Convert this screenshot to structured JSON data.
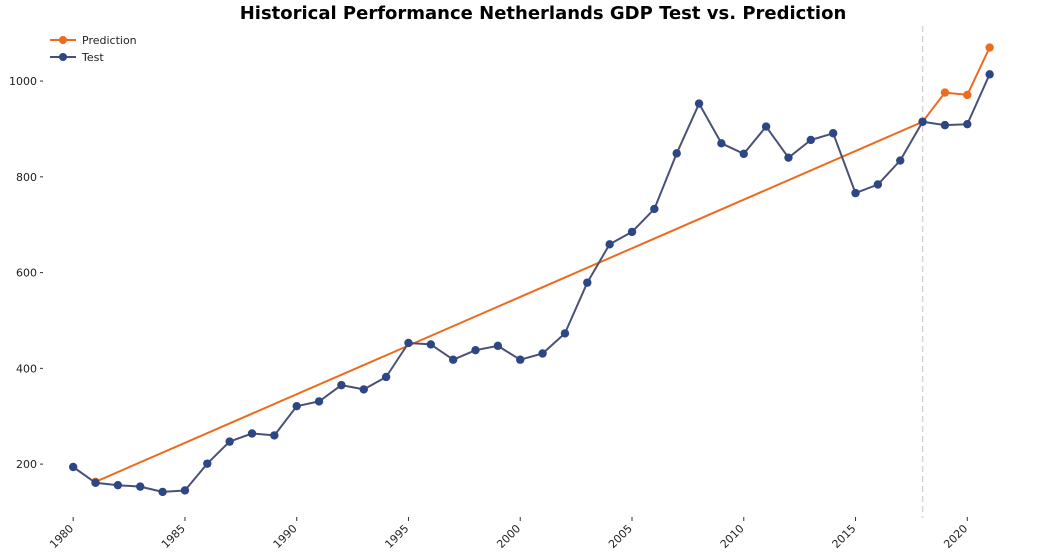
{
  "chart_data": {
    "type": "line",
    "title": "Historical Performance Netherlands GDP Test vs. Prediction",
    "xlabel": "",
    "ylabel": "",
    "xlim": [
      1979.5,
      2022
    ],
    "ylim": [
      100,
      1115
    ],
    "x_ticks": [
      1980,
      1985,
      1990,
      1995,
      2000,
      2005,
      2010,
      2015,
      2020
    ],
    "y_ticks": [
      200,
      400,
      600,
      800,
      1000
    ],
    "grid": false,
    "legend_position": "top-left",
    "vertical_marker": {
      "x": 2018,
      "style": "dashed"
    },
    "series": [
      {
        "name": "Prediction",
        "color": "#ec6b1e",
        "x": [
          1981,
          2018,
          2019,
          2020,
          2021
        ],
        "values": [
          163,
          915,
          976,
          971,
          1070
        ]
      },
      {
        "name": "Test",
        "color": "#2c4784",
        "line_color": "#4a5177",
        "x": [
          1980,
          1981,
          1982,
          1983,
          1984,
          1985,
          1986,
          1987,
          1988,
          1989,
          1990,
          1991,
          1992,
          1993,
          1994,
          1995,
          1996,
          1997,
          1998,
          1999,
          2000,
          2001,
          2002,
          2003,
          2004,
          2005,
          2006,
          2007,
          2008,
          2009,
          2010,
          2011,
          2012,
          2013,
          2014,
          2015,
          2016,
          2017,
          2018,
          2019,
          2020,
          2021
        ],
        "values": [
          194,
          161,
          156,
          153,
          142,
          145,
          201,
          247,
          264,
          260,
          321,
          331,
          365,
          356,
          382,
          453,
          450,
          418,
          438,
          447,
          418,
          431,
          473,
          579,
          659,
          685,
          733,
          849,
          953,
          870,
          848,
          905,
          840,
          877,
          891,
          766,
          784,
          834,
          915,
          908,
          910,
          1014
        ]
      }
    ]
  }
}
